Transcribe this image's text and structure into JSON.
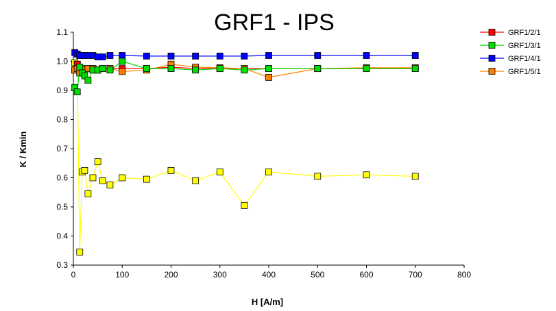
{
  "chart_data": {
    "type": "line",
    "title": "GRF1 - IPS",
    "xlabel": "H [A/m]",
    "ylabel": "K / Kmin",
    "xlim": [
      0,
      800
    ],
    "ylim": [
      0.3,
      1.1
    ],
    "xticks": [
      0,
      100,
      200,
      300,
      400,
      500,
      600,
      700,
      800
    ],
    "yticks": [
      0.3,
      0.4,
      0.5,
      0.6,
      0.7,
      0.8,
      0.9,
      1.0,
      1.1
    ],
    "ytick_labels": [
      "0.3",
      "0.4",
      "0.5",
      "0.6",
      "0.7",
      "0.8",
      "0.9",
      "1.0",
      "1.1"
    ],
    "grid": false,
    "legend_position": "top-right outside",
    "series": [
      {
        "name": "GRF1/2/1",
        "color": "#ff0000",
        "x": [
          3,
          8,
          13,
          18,
          23,
          30,
          40,
          50,
          60,
          75,
          100,
          150,
          200,
          250,
          300,
          350,
          400,
          500,
          600,
          700
        ],
        "y": [
          0.97,
          0.99,
          0.97,
          0.97,
          0.97,
          0.975,
          0.975,
          0.97,
          0.975,
          0.975,
          0.975,
          0.975,
          0.98,
          0.975,
          0.975,
          0.975,
          0.975,
          0.975,
          0.975,
          0.975
        ]
      },
      {
        "name": "GRF1/3/1",
        "color": "#00dd00",
        "x": [
          3,
          8,
          13,
          18,
          23,
          30,
          40,
          50,
          60,
          75,
          100,
          150,
          200,
          250,
          300,
          350,
          400,
          500,
          600,
          700
        ],
        "y": [
          0.91,
          0.895,
          0.98,
          0.96,
          0.95,
          0.935,
          0.97,
          0.97,
          0.975,
          0.97,
          1.0,
          0.975,
          0.975,
          0.97,
          0.975,
          0.97,
          0.975,
          0.975,
          0.975,
          0.975
        ]
      },
      {
        "name": "GRF1/4/1",
        "color": "#0000ff",
        "x": [
          3,
          8,
          13,
          18,
          23,
          30,
          40,
          50,
          60,
          75,
          100,
          150,
          200,
          250,
          300,
          350,
          400,
          500,
          600,
          700
        ],
        "y": [
          1.03,
          1.025,
          1.02,
          1.02,
          1.02,
          1.02,
          1.02,
          1.015,
          1.015,
          1.02,
          1.02,
          1.018,
          1.018,
          1.018,
          1.018,
          1.018,
          1.02,
          1.02,
          1.02,
          1.02
        ]
      },
      {
        "name": "GRF1/5/1",
        "color": "#ff8000",
        "x": [
          3,
          8,
          13,
          18,
          23,
          30,
          40,
          50,
          60,
          75,
          100,
          150,
          200,
          250,
          300,
          350,
          400,
          500,
          600,
          700
        ],
        "y": [
          0.97,
          0.975,
          0.96,
          0.975,
          0.97,
          0.975,
          0.975,
          0.97,
          0.975,
          0.975,
          0.965,
          0.97,
          0.99,
          0.98,
          0.978,
          0.975,
          0.945,
          0.975,
          0.978,
          0.978
        ]
      },
      {
        "color": "#ffff00",
        "x": [
          3,
          8,
          13,
          18,
          23,
          30,
          40,
          50,
          60,
          75,
          100,
          150,
          200,
          250,
          300,
          350,
          400,
          500,
          600,
          700
        ],
        "y": [
          0.995,
          0.99,
          0.345,
          0.62,
          0.625,
          0.545,
          0.6,
          0.655,
          0.59,
          0.575,
          0.6,
          0.595,
          0.625,
          0.59,
          0.62,
          0.505,
          0.62,
          0.605,
          0.61,
          0.605
        ]
      }
    ]
  }
}
